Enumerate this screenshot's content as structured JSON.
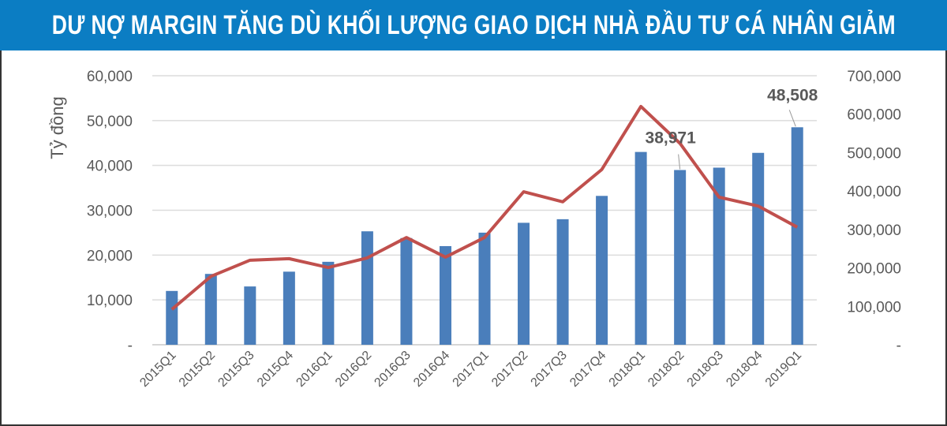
{
  "title": "DƯ NỢ MARGIN TĂNG DÙ KHỐI LƯỢNG GIAO DỊCH NHÀ ĐẦU TƯ CÁ NHÂN GIẢM",
  "chart_data": {
    "type": "bar+line",
    "title": "DƯ NỢ MARGIN TĂNG DÙ KHỐI LƯỢNG GIAO DỊCH NHÀ ĐẦU TƯ CÁ NHÂN GIẢM",
    "ylabel": "Tỷ đồng",
    "categories": [
      "2015Q1",
      "2015Q2",
      "2015Q3",
      "2015Q4",
      "2016Q1",
      "2016Q2",
      "2016Q3",
      "2016Q4",
      "2017Q1",
      "2017Q2",
      "2017Q3",
      "2017Q4",
      "2018Q1",
      "2018Q2",
      "2018Q3",
      "2018Q4",
      "2019Q1"
    ],
    "series": [
      {
        "type": "bar",
        "axis": "left",
        "color": "#4a7ebb",
        "values": [
          12000,
          15800,
          13000,
          16300,
          18500,
          25300,
          23800,
          22000,
          25000,
          27200,
          28000,
          33200,
          43000,
          38971,
          39500,
          42800,
          48508
        ]
      },
      {
        "type": "line",
        "axis": "right",
        "color": "#c0504d",
        "values": [
          92000,
          178000,
          220000,
          224000,
          201000,
          226000,
          279000,
          228000,
          279000,
          398000,
          372000,
          456000,
          620000,
          524000,
          384000,
          361000,
          306000
        ]
      }
    ],
    "data_labels": [
      {
        "category": "2018Q2",
        "text": "38,971"
      },
      {
        "category": "2019Q1",
        "text": "48,508"
      }
    ],
    "left_axis": {
      "ylim": [
        0,
        60000
      ],
      "ticks": [
        "-",
        "10,000",
        "20,000",
        "30,000",
        "40,000",
        "50,000",
        "60,000"
      ]
    },
    "right_axis": {
      "ylim": [
        0,
        700000
      ],
      "ticks": [
        "-",
        "100,000",
        "200,000",
        "300,000",
        "400,000",
        "500,000",
        "600,000",
        "700,000"
      ]
    },
    "grid": true,
    "legend": "none"
  }
}
